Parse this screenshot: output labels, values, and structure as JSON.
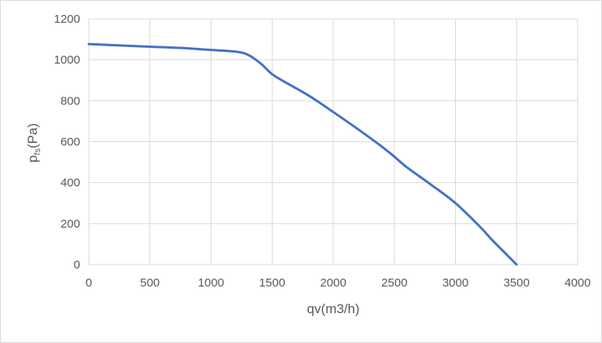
{
  "chart_data": {
    "type": "line",
    "title": "",
    "xlabel": "qv(m3/h)",
    "ylabel_main": "p",
    "ylabel_sub": "fs",
    "ylabel_unit": "(Pa)",
    "xlim": [
      0,
      4000
    ],
    "ylim": [
      0,
      1200
    ],
    "x_ticks": [
      "0",
      "500",
      "1000",
      "1500",
      "2000",
      "2500",
      "3000",
      "3500",
      "4000"
    ],
    "y_ticks": [
      "0",
      "200",
      "400",
      "600",
      "800",
      "1000",
      "1200"
    ],
    "grid": true,
    "legend": "none",
    "series": [
      {
        "color": "#4472c4",
        "x": [
          0,
          250,
          500,
          750,
          1000,
          1200,
          1300,
          1400,
          1500,
          1600,
          1800,
          2000,
          2200,
          2400,
          2500,
          2600,
          2800,
          3000,
          3200,
          3300,
          3400,
          3500
        ],
        "y": [
          1077,
          1070,
          1064,
          1058,
          1048,
          1040,
          1025,
          985,
          930,
          893,
          825,
          745,
          662,
          575,
          527,
          476,
          390,
          300,
          185,
          120,
          60,
          0
        ]
      }
    ]
  }
}
